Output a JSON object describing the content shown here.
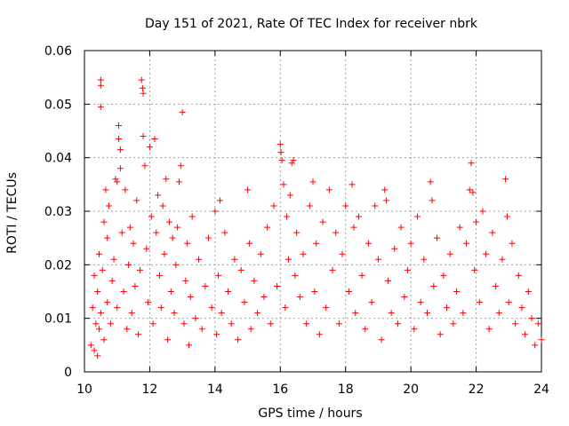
{
  "chart_data": {
    "type": "scatter",
    "title": "Day 151 of 2021, Rate Of TEC Index for receiver nbrk",
    "xlabel": "GPS time / hours",
    "ylabel": "ROTI / TECUs",
    "xlim": [
      10,
      24
    ],
    "ylim": [
      0,
      0.06
    ],
    "xticks": [
      10,
      12,
      14,
      16,
      18,
      20,
      22,
      24
    ],
    "xtick_labels": [
      "10",
      "12",
      "14",
      "16",
      "18",
      "20",
      "22",
      "24"
    ],
    "yticks": [
      0,
      0.01,
      0.02,
      0.03,
      0.04,
      0.05,
      0.06
    ],
    "ytick_labels": [
      "0",
      "0.01",
      "0.02",
      "0.03",
      "0.04",
      "0.05",
      "0.06"
    ],
    "grid": true,
    "marker": "+",
    "marker_color": "#ff0000",
    "series": [
      {
        "name": "ROTI",
        "points": [
          [
            10.2,
            0.005
          ],
          [
            10.25,
            0.012
          ],
          [
            10.3,
            0.004
          ],
          [
            10.3,
            0.018
          ],
          [
            10.35,
            0.009
          ],
          [
            10.4,
            0.003
          ],
          [
            10.4,
            0.015
          ],
          [
            10.45,
            0.022
          ],
          [
            10.45,
            0.008
          ],
          [
            10.5,
            0.0545
          ],
          [
            10.5,
            0.0535
          ],
          [
            10.5,
            0.0495
          ],
          [
            10.5,
            0.011
          ],
          [
            10.55,
            0.019
          ],
          [
            10.6,
            0.028
          ],
          [
            10.6,
            0.006
          ],
          [
            10.65,
            0.034
          ],
          [
            10.7,
            0.025
          ],
          [
            10.7,
            0.013
          ],
          [
            10.75,
            0.031
          ],
          [
            10.8,
            0.009
          ],
          [
            10.85,
            0.017
          ],
          [
            10.9,
            0.021
          ],
          [
            10.95,
            0.036
          ],
          [
            11.0,
            0.0355
          ],
          [
            11.0,
            0.012
          ],
          [
            11.05,
            0.046
          ],
          [
            11.05,
            0.0435
          ],
          [
            11.1,
            0.0415
          ],
          [
            11.1,
            0.038
          ],
          [
            11.15,
            0.026
          ],
          [
            11.2,
            0.015
          ],
          [
            11.25,
            0.034
          ],
          [
            11.3,
            0.008
          ],
          [
            11.35,
            0.02
          ],
          [
            11.4,
            0.027
          ],
          [
            11.45,
            0.011
          ],
          [
            11.5,
            0.024
          ],
          [
            11.55,
            0.016
          ],
          [
            11.6,
            0.032
          ],
          [
            11.65,
            0.007
          ],
          [
            11.7,
            0.019
          ],
          [
            11.75,
            0.0545
          ],
          [
            11.78,
            0.053
          ],
          [
            11.8,
            0.052
          ],
          [
            11.8,
            0.044
          ],
          [
            11.85,
            0.0385
          ],
          [
            11.9,
            0.023
          ],
          [
            11.95,
            0.013
          ],
          [
            12.0,
            0.042
          ],
          [
            12.05,
            0.029
          ],
          [
            12.1,
            0.009
          ],
          [
            12.15,
            0.0435
          ],
          [
            12.2,
            0.026
          ],
          [
            12.25,
            0.033
          ],
          [
            12.3,
            0.018
          ],
          [
            12.35,
            0.012
          ],
          [
            12.4,
            0.031
          ],
          [
            12.45,
            0.022
          ],
          [
            12.5,
            0.036
          ],
          [
            12.55,
            0.006
          ],
          [
            12.6,
            0.028
          ],
          [
            12.65,
            0.015
          ],
          [
            12.7,
            0.025
          ],
          [
            12.75,
            0.011
          ],
          [
            12.8,
            0.02
          ],
          [
            12.85,
            0.027
          ],
          [
            12.9,
            0.0355
          ],
          [
            12.95,
            0.0385
          ],
          [
            13.0,
            0.0485
          ],
          [
            13.05,
            0.009
          ],
          [
            13.1,
            0.017
          ],
          [
            13.15,
            0.024
          ],
          [
            13.2,
            0.005
          ],
          [
            13.25,
            0.014
          ],
          [
            13.3,
            0.029
          ],
          [
            13.4,
            0.01
          ],
          [
            13.5,
            0.021
          ],
          [
            13.6,
            0.008
          ],
          [
            13.7,
            0.016
          ],
          [
            13.8,
            0.025
          ],
          [
            13.9,
            0.012
          ],
          [
            14.0,
            0.03
          ],
          [
            14.05,
            0.007
          ],
          [
            14.1,
            0.018
          ],
          [
            14.15,
            0.032
          ],
          [
            14.2,
            0.011
          ],
          [
            14.3,
            0.026
          ],
          [
            14.4,
            0.015
          ],
          [
            14.5,
            0.009
          ],
          [
            14.6,
            0.021
          ],
          [
            14.7,
            0.006
          ],
          [
            14.8,
            0.019
          ],
          [
            14.9,
            0.013
          ],
          [
            15.0,
            0.034
          ],
          [
            15.05,
            0.024
          ],
          [
            15.1,
            0.008
          ],
          [
            15.2,
            0.017
          ],
          [
            15.3,
            0.011
          ],
          [
            15.4,
            0.022
          ],
          [
            15.5,
            0.014
          ],
          [
            15.6,
            0.027
          ],
          [
            15.7,
            0.009
          ],
          [
            15.8,
            0.031
          ],
          [
            15.9,
            0.016
          ],
          [
            16.0,
            0.0425
          ],
          [
            16.02,
            0.041
          ],
          [
            16.05,
            0.0395
          ],
          [
            16.1,
            0.035
          ],
          [
            16.15,
            0.012
          ],
          [
            16.2,
            0.029
          ],
          [
            16.25,
            0.021
          ],
          [
            16.3,
            0.033
          ],
          [
            16.35,
            0.039
          ],
          [
            16.4,
            0.0395
          ],
          [
            16.45,
            0.018
          ],
          [
            16.5,
            0.026
          ],
          [
            16.6,
            0.014
          ],
          [
            16.7,
            0.022
          ],
          [
            16.8,
            0.009
          ],
          [
            16.9,
            0.031
          ],
          [
            17.0,
            0.0355
          ],
          [
            17.05,
            0.015
          ],
          [
            17.1,
            0.024
          ],
          [
            17.2,
            0.007
          ],
          [
            17.3,
            0.028
          ],
          [
            17.4,
            0.012
          ],
          [
            17.5,
            0.034
          ],
          [
            17.6,
            0.019
          ],
          [
            17.7,
            0.026
          ],
          [
            17.8,
            0.009
          ],
          [
            17.9,
            0.022
          ],
          [
            18.0,
            0.031
          ],
          [
            18.1,
            0.015
          ],
          [
            18.2,
            0.035
          ],
          [
            18.25,
            0.027
          ],
          [
            18.3,
            0.011
          ],
          [
            18.4,
            0.029
          ],
          [
            18.5,
            0.018
          ],
          [
            18.6,
            0.008
          ],
          [
            18.7,
            0.024
          ],
          [
            18.8,
            0.013
          ],
          [
            18.9,
            0.031
          ],
          [
            19.0,
            0.021
          ],
          [
            19.1,
            0.006
          ],
          [
            19.2,
            0.034
          ],
          [
            19.25,
            0.032
          ],
          [
            19.3,
            0.017
          ],
          [
            19.4,
            0.011
          ],
          [
            19.5,
            0.023
          ],
          [
            19.6,
            0.009
          ],
          [
            19.7,
            0.027
          ],
          [
            19.8,
            0.014
          ],
          [
            19.9,
            0.019
          ],
          [
            20.0,
            0.024
          ],
          [
            20.1,
            0.008
          ],
          [
            20.2,
            0.029
          ],
          [
            20.3,
            0.013
          ],
          [
            20.4,
            0.021
          ],
          [
            20.5,
            0.011
          ],
          [
            20.6,
            0.0355
          ],
          [
            20.65,
            0.032
          ],
          [
            20.7,
            0.016
          ],
          [
            20.8,
            0.025
          ],
          [
            20.9,
            0.007
          ],
          [
            21.0,
            0.018
          ],
          [
            21.1,
            0.012
          ],
          [
            21.2,
            0.022
          ],
          [
            21.3,
            0.009
          ],
          [
            21.4,
            0.015
          ],
          [
            21.5,
            0.027
          ],
          [
            21.6,
            0.011
          ],
          [
            21.7,
            0.024
          ],
          [
            21.8,
            0.034
          ],
          [
            21.85,
            0.039
          ],
          [
            21.9,
            0.0335
          ],
          [
            21.95,
            0.019
          ],
          [
            22.0,
            0.028
          ],
          [
            22.1,
            0.013
          ],
          [
            22.2,
            0.03
          ],
          [
            22.3,
            0.022
          ],
          [
            22.4,
            0.008
          ],
          [
            22.5,
            0.026
          ],
          [
            22.6,
            0.016
          ],
          [
            22.7,
            0.011
          ],
          [
            22.8,
            0.021
          ],
          [
            22.9,
            0.036
          ],
          [
            22.95,
            0.029
          ],
          [
            23.0,
            0.013
          ],
          [
            23.1,
            0.024
          ],
          [
            23.2,
            0.009
          ],
          [
            23.3,
            0.018
          ],
          [
            23.4,
            0.012
          ],
          [
            23.5,
            0.007
          ],
          [
            23.6,
            0.015
          ],
          [
            23.7,
            0.01
          ],
          [
            23.8,
            0.005
          ],
          [
            23.9,
            0.009
          ],
          [
            24.0,
            0.006
          ]
        ]
      }
    ]
  }
}
